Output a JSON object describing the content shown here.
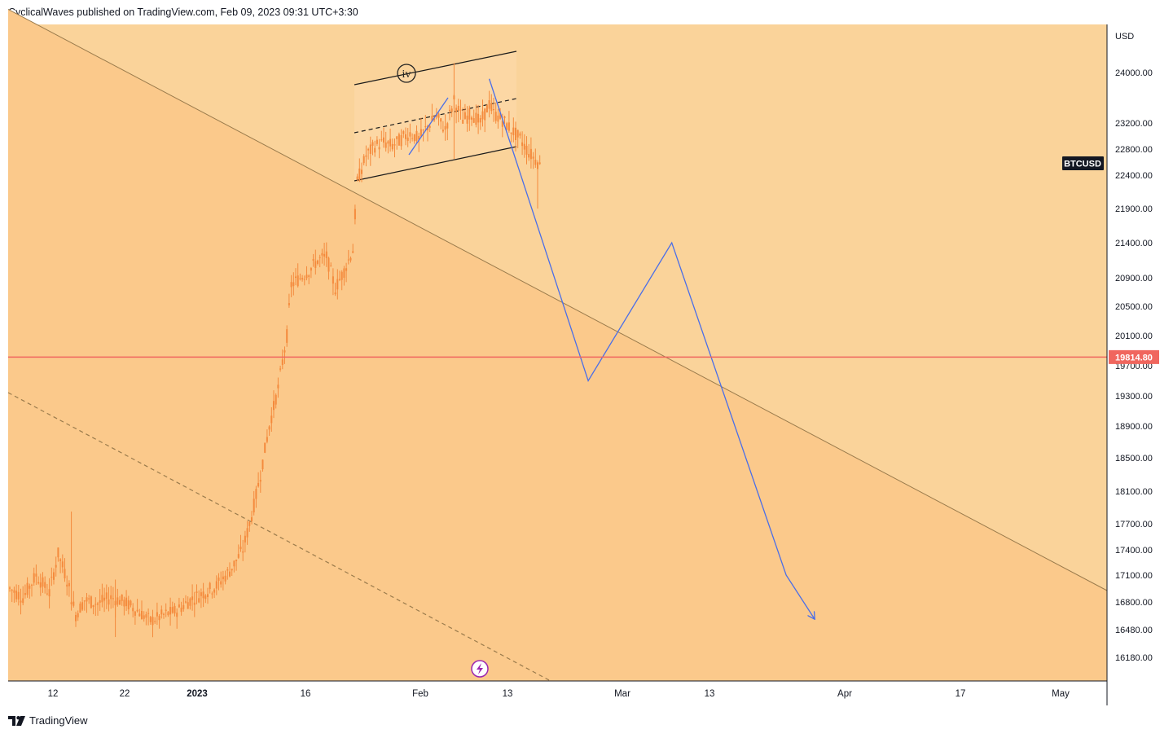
{
  "header": {
    "publish_line": "CyclicalWaves published on TradingView.com, Feb 09, 2023 09:31 UTC+3:30"
  },
  "footer": {
    "brand": "TradingView"
  },
  "chart_data": {
    "type": "candlestick",
    "symbol": "BTCUSD",
    "currency": "USD",
    "last_price_label": "19814.80",
    "last_price_value": 19814.8,
    "y_ticks": [
      {
        "label": "24000.00",
        "value": 24000
      },
      {
        "label": "23200.00",
        "value": 23200
      },
      {
        "label": "22800.00",
        "value": 22800
      },
      {
        "label": "22400.00",
        "value": 22400
      },
      {
        "label": "21900.00",
        "value": 21900
      },
      {
        "label": "21400.00",
        "value": 21400
      },
      {
        "label": "20900.00",
        "value": 20900
      },
      {
        "label": "20500.00",
        "value": 20500
      },
      {
        "label": "20100.00",
        "value": 20100
      },
      {
        "label": "19700.00",
        "value": 19700
      },
      {
        "label": "19300.00",
        "value": 19300
      },
      {
        "label": "18900.00",
        "value": 18900
      },
      {
        "label": "18500.00",
        "value": 18500
      },
      {
        "label": "18100.00",
        "value": 18100
      },
      {
        "label": "17700.00",
        "value": 17700
      },
      {
        "label": "17400.00",
        "value": 17400
      },
      {
        "label": "17100.00",
        "value": 17100
      },
      {
        "label": "16800.00",
        "value": 16800
      },
      {
        "label": "16480.00",
        "value": 16480
      },
      {
        "label": "16180.00",
        "value": 16180
      }
    ],
    "x_ticks": [
      {
        "label": "12",
        "bold": false
      },
      {
        "label": "22",
        "bold": false
      },
      {
        "label": "2023",
        "bold": true
      },
      {
        "label": "16",
        "bold": false
      },
      {
        "label": "Feb",
        "bold": false
      },
      {
        "label": "13",
        "bold": false
      },
      {
        "label": "Mar",
        "bold": false
      },
      {
        "label": "13",
        "bold": false
      },
      {
        "label": "Apr",
        "bold": false
      },
      {
        "label": "17",
        "bold": false
      },
      {
        "label": "May",
        "bold": false
      }
    ],
    "price_path": [
      [
        0,
        16950
      ],
      [
        6,
        16850
      ],
      [
        12,
        17100
      ],
      [
        18,
        16900
      ],
      [
        22,
        17350
      ],
      [
        26,
        17050
      ],
      [
        30,
        16650
      ],
      [
        34,
        16820
      ],
      [
        40,
        16780
      ],
      [
        46,
        16850
      ],
      [
        52,
        16800
      ],
      [
        58,
        16700
      ],
      [
        64,
        16580
      ],
      [
        70,
        16650
      ],
      [
        76,
        16700
      ],
      [
        82,
        16820
      ],
      [
        88,
        16900
      ],
      [
        94,
        16980
      ],
      [
        100,
        17150
      ],
      [
        106,
        17400
      ],
      [
        110,
        17800
      ],
      [
        114,
        18300
      ],
      [
        118,
        18900
      ],
      [
        122,
        19400
      ],
      [
        126,
        20100
      ],
      [
        128,
        20800
      ],
      [
        132,
        20900
      ],
      [
        136,
        21000
      ],
      [
        140,
        21150
      ],
      [
        144,
        21200
      ],
      [
        148,
        20750
      ],
      [
        152,
        21000
      ],
      [
        156,
        21300
      ],
      [
        158,
        22300
      ],
      [
        162,
        22700
      ],
      [
        166,
        22850
      ],
      [
        170,
        22900
      ],
      [
        174,
        22850
      ],
      [
        178,
        22950
      ],
      [
        182,
        23050
      ],
      [
        186,
        22950
      ],
      [
        190,
        23150
      ],
      [
        194,
        23300
      ],
      [
        198,
        23100
      ],
      [
        202,
        23550
      ],
      [
        206,
        23250
      ],
      [
        210,
        23350
      ],
      [
        214,
        23200
      ],
      [
        218,
        23500
      ],
      [
        220,
        23350
      ],
      [
        224,
        23250
      ],
      [
        228,
        23100
      ],
      [
        232,
        22950
      ],
      [
        236,
        22750
      ],
      [
        240,
        22600
      ],
      [
        242,
        22500
      ]
    ],
    "wave_label": "iv",
    "projection_path": [
      [
        218,
        23900
      ],
      [
        263,
        19500
      ],
      [
        301,
        21400
      ],
      [
        353,
        17100
      ],
      [
        366,
        16600
      ]
    ],
    "colors": {
      "bg_upper": "#fad39a",
      "bg_lower": "#fbc98b",
      "channel_fill": "#fcd7a4",
      "candle": "#f48a3c",
      "projection": "#4a6ee8",
      "price_line": "#f0665e",
      "trend_line": "#9a7b4c"
    }
  }
}
